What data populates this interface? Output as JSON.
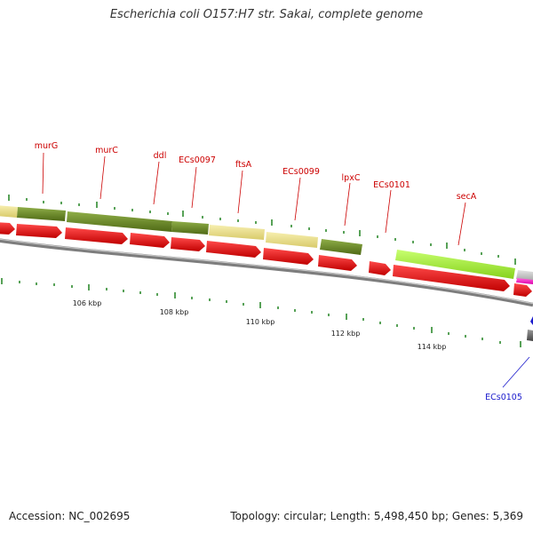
{
  "title": "Escherichia coli O157:H7 str. Sakai, complete genome",
  "footer": {
    "accession": "Accession: NC_002695",
    "summary": "Topology: circular; Length: 5,498,450 bp; Genes: 5,369"
  },
  "colors": {
    "cds_forward": "#e00000",
    "gene_olive": "#6b8e23",
    "gene_khaki": "#eee28c",
    "gene_lime": "#a7f03a",
    "gene_gray": "#c9c9c9",
    "gene_pink": "#ff20c0",
    "backbone": "#888888",
    "tick": "#2e8b2e",
    "label_red": "#cc0000",
    "label_blue": "#1a1acc"
  },
  "scale_labels": [
    {
      "text": "106 kbp"
    },
    {
      "text": "108 kbp"
    },
    {
      "text": "110 kbp"
    },
    {
      "text": "112 kbp"
    },
    {
      "text": "114 kbp"
    }
  ],
  "gene_labels": [
    {
      "text": "murG",
      "color": "red"
    },
    {
      "text": "murC",
      "color": "red"
    },
    {
      "text": "ddl",
      "color": "red"
    },
    {
      "text": "ECs0097",
      "color": "red"
    },
    {
      "text": "ftsA",
      "color": "red"
    },
    {
      "text": "ECs0099",
      "color": "red"
    },
    {
      "text": "lpxC",
      "color": "red"
    },
    {
      "text": "ECs0101",
      "color": "red"
    },
    {
      "text": "secA",
      "color": "red"
    },
    {
      "text": "ECs0105",
      "color": "blue"
    }
  ]
}
